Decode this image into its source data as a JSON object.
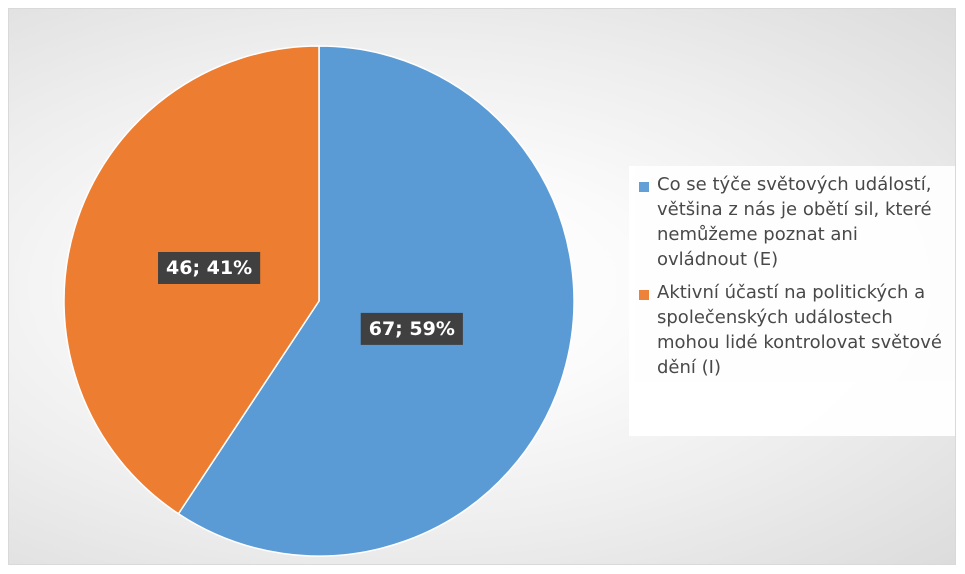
{
  "chart_data": {
    "type": "pie",
    "slices": [
      {
        "label": "Co se týče světových událostí, většina z nás je obětí sil, které nemůžeme poznat ani ovládnout (E)",
        "value": 67,
        "percent": 59,
        "data_label": "67; 59%",
        "color": "#5b9bd5"
      },
      {
        "label": "Aktivní účastí na politických a společenských událostech mohou lidé kontrolovat světové dění (I)",
        "value": 46,
        "percent": 41,
        "data_label": "46; 41%",
        "color": "#ed7d31"
      }
    ],
    "legend_position": "right",
    "start_angle": "top",
    "direction": "clockwise"
  }
}
